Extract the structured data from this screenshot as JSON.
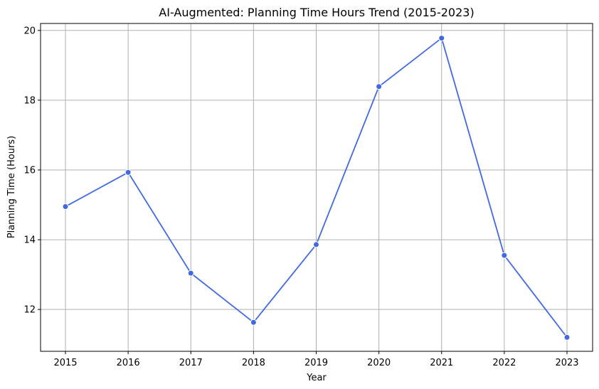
{
  "chart_data": {
    "type": "line",
    "title": "AI-Augmented: Planning Time Hours Trend (2015-2023)",
    "xlabel": "Year",
    "ylabel": "Planning Time (Hours)",
    "x": [
      "2015",
      "2016",
      "2017",
      "2018",
      "2019",
      "2020",
      "2021",
      "2022",
      "2023"
    ],
    "series": [
      {
        "values": [
          14.95,
          15.93,
          13.04,
          11.63,
          13.86,
          18.39,
          19.78,
          13.55,
          11.2
        ],
        "color": "#4169e1",
        "marker": "circle"
      }
    ],
    "ylim": [
      10.8,
      20.2
    ],
    "yticks": [
      12,
      14,
      16,
      18,
      20
    ],
    "grid": true
  }
}
